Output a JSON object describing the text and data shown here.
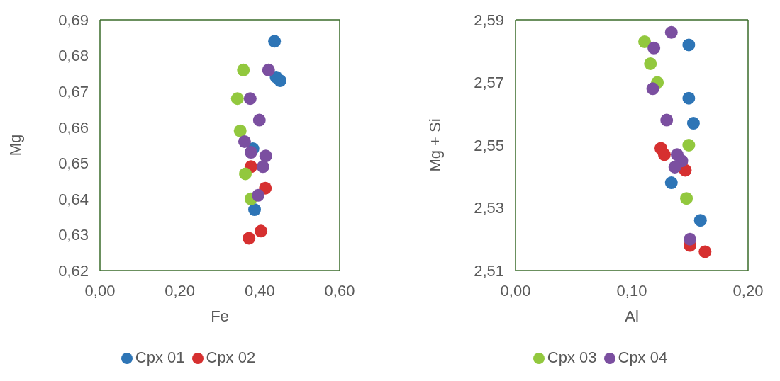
{
  "chart_data": [
    {
      "type": "scatter",
      "xlabel": "Fe",
      "ylabel": "Mg",
      "xlim": [
        0,
        0.6
      ],
      "xticks": [
        {
          "value": 0,
          "label": "0,00"
        },
        {
          "value": 0.2,
          "label": "0,20"
        },
        {
          "value": 0.4,
          "label": "0,40"
        },
        {
          "value": 0.6,
          "label": "0,60"
        }
      ],
      "ylim": [
        0.62,
        0.69
      ],
      "yticks": [
        {
          "value": 0.62,
          "label": "0,62"
        },
        {
          "value": 0.63,
          "label": "0,63"
        },
        {
          "value": 0.64,
          "label": "0,64"
        },
        {
          "value": 0.65,
          "label": "0,65"
        },
        {
          "value": 0.66,
          "label": "0,66"
        },
        {
          "value": 0.67,
          "label": "0,67"
        },
        {
          "value": 0.68,
          "label": "0,68"
        },
        {
          "value": 0.69,
          "label": "0,69"
        }
      ],
      "legend": "bottom",
      "marker": "circle",
      "series": [
        {
          "name": "Cpx 01",
          "color": "#2e75b6",
          "x": [
            0.437,
            0.441,
            0.451,
            0.383,
            0.387
          ],
          "values": [
            0.684,
            0.674,
            0.673,
            0.654,
            0.637
          ]
        },
        {
          "name": "Cpx 02",
          "color": "#d63030",
          "x": [
            0.378,
            0.414,
            0.403,
            0.373
          ],
          "values": [
            0.649,
            0.643,
            0.631,
            0.629
          ]
        },
        {
          "color": "#92c83e",
          "x": [
            0.359,
            0.344,
            0.351,
            0.364,
            0.378
          ],
          "values": [
            0.676,
            0.668,
            0.659,
            0.647,
            0.64
          ]
        },
        {
          "color": "#7b4fa0",
          "x": [
            0.422,
            0.376,
            0.399,
            0.362,
            0.378,
            0.415,
            0.408,
            0.396
          ],
          "values": [
            0.676,
            0.668,
            0.662,
            0.656,
            0.653,
            0.652,
            0.649,
            0.641
          ]
        }
      ]
    },
    {
      "type": "scatter",
      "xlabel": "Al",
      "ylabel": "Mg + Si",
      "xlim": [
        0,
        0.2
      ],
      "xticks": [
        {
          "value": 0,
          "label": "0,00"
        },
        {
          "value": 0.1,
          "label": "0,10"
        },
        {
          "value": 0.2,
          "label": "0,20"
        }
      ],
      "ylim": [
        2.51,
        2.59
      ],
      "yticks": [
        {
          "value": 2.51,
          "label": "2,51"
        },
        {
          "value": 2.53,
          "label": "2,53"
        },
        {
          "value": 2.55,
          "label": "2,55"
        },
        {
          "value": 2.57,
          "label": "2,57"
        },
        {
          "value": 2.59,
          "label": "2,59"
        }
      ],
      "legend": "bottom",
      "marker": "circle",
      "series": [
        {
          "color": "#2e75b6",
          "x": [
            0.149,
            0.149,
            0.153,
            0.134,
            0.159
          ],
          "values": [
            2.582,
            2.565,
            2.557,
            2.538,
            2.526
          ]
        },
        {
          "color": "#d63030",
          "x": [
            0.125,
            0.128,
            0.146,
            0.15,
            0.163
          ],
          "values": [
            2.549,
            2.547,
            2.542,
            2.518,
            2.516
          ]
        },
        {
          "name": "Cpx 03",
          "color": "#92c83e",
          "x": [
            0.111,
            0.116,
            0.122,
            0.149,
            0.147
          ],
          "values": [
            2.583,
            2.576,
            2.57,
            2.55,
            2.533
          ]
        },
        {
          "name": "Cpx 04",
          "color": "#7b4fa0",
          "x": [
            0.134,
            0.119,
            0.118,
            0.13,
            0.139,
            0.143,
            0.137,
            0.15
          ],
          "values": [
            2.586,
            2.581,
            2.568,
            2.558,
            2.547,
            2.545,
            2.543,
            2.52
          ]
        }
      ]
    }
  ]
}
